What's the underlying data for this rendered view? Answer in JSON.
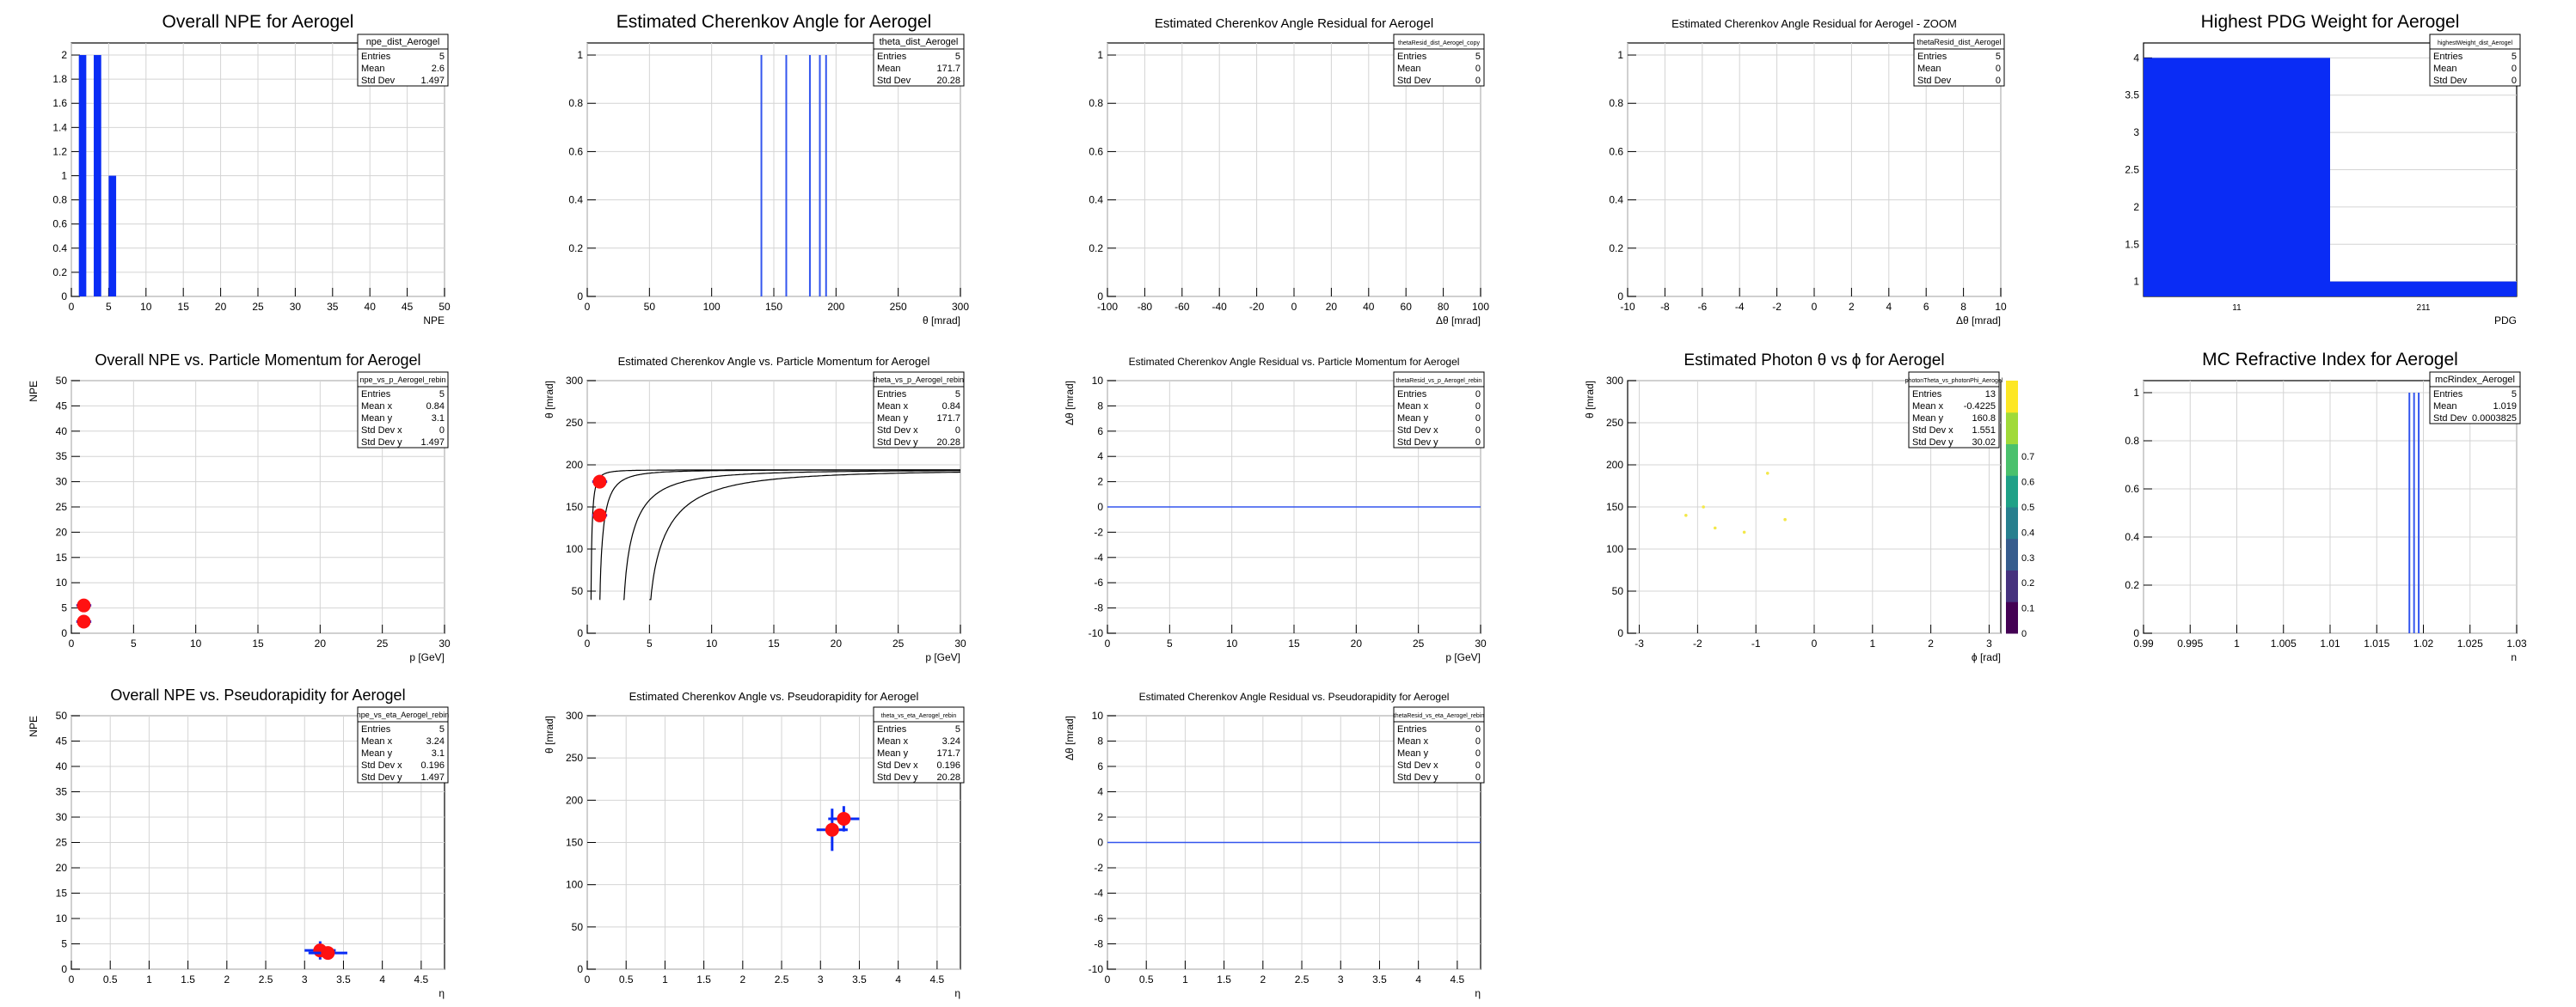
{
  "chart_data": [
    {
      "panel": 1,
      "type": "bar",
      "title": "Overall NPE for Aerogel",
      "xlabel": "NPE",
      "ylabel": "",
      "xlim": [
        0,
        50
      ],
      "ylim": [
        0,
        2.1
      ],
      "xticks": [
        0,
        5,
        10,
        15,
        20,
        25,
        30,
        35,
        40,
        45,
        50
      ],
      "yticks": [
        0,
        0.2,
        0.4,
        0.6,
        0.8,
        1,
        1.2,
        1.4,
        1.6,
        1.8,
        2
      ],
      "bins": [
        {
          "lo": 1,
          "hi": 2,
          "value": 2
        },
        {
          "lo": 3,
          "hi": 4,
          "value": 2
        },
        {
          "lo": 5,
          "hi": 6,
          "value": 1
        }
      ],
      "stats": {
        "name": "npe_dist_Aerogel",
        "rows": [
          [
            "Entries",
            "5"
          ],
          [
            "Mean",
            "2.6"
          ],
          [
            "Std Dev",
            "1.497"
          ]
        ]
      }
    },
    {
      "panel": 2,
      "type": "bar",
      "title": "Estimated Cherenkov Angle for Aerogel",
      "xlabel": "θ [mrad]",
      "ylabel": "",
      "xlim": [
        0,
        300
      ],
      "ylim": [
        0,
        1.05
      ],
      "xticks": [
        0,
        50,
        100,
        150,
        200,
        250,
        300
      ],
      "yticks": [
        0,
        0.2,
        0.4,
        0.6,
        0.8,
        1
      ],
      "lines": [
        140,
        160,
        179,
        187,
        192
      ],
      "stats": {
        "name": "theta_dist_Aerogel",
        "rows": [
          [
            "Entries",
            "5"
          ],
          [
            "Mean",
            "171.7"
          ],
          [
            "Std Dev",
            "20.28"
          ]
        ]
      }
    },
    {
      "panel": 3,
      "type": "bar",
      "title": "Estimated Cherenkov Angle Residual for Aerogel",
      "xlabel": "Δθ [mrad]",
      "ylabel": "",
      "xlim": [
        -100,
        100
      ],
      "ylim": [
        0,
        1.05
      ],
      "xticks": [
        -100,
        -80,
        -60,
        -40,
        -20,
        0,
        20,
        40,
        60,
        80,
        100
      ],
      "yticks": [
        0,
        0.2,
        0.4,
        0.6,
        0.8,
        1
      ],
      "stats": {
        "name": "thetaResid_dist_Aerogel_copy",
        "rows": [
          [
            "Entries",
            "5"
          ],
          [
            "Mean",
            "0"
          ],
          [
            "Std Dev",
            "0"
          ]
        ]
      }
    },
    {
      "panel": 4,
      "type": "bar",
      "title": "Estimated Cherenkov Angle Residual for Aerogel - ZOOM",
      "xlabel": "Δθ [mrad]",
      "ylabel": "",
      "xlim": [
        -10,
        10
      ],
      "ylim": [
        0,
        1.05
      ],
      "xticks": [
        -10,
        -8,
        -6,
        -4,
        -2,
        0,
        2,
        4,
        6,
        8,
        10
      ],
      "yticks": [
        0,
        0.2,
        0.4,
        0.6,
        0.8,
        1
      ],
      "stats": {
        "name": "thetaResid_dist_Aerogel",
        "rows": [
          [
            "Entries",
            "5"
          ],
          [
            "Mean",
            "0"
          ],
          [
            "Std Dev",
            "0"
          ]
        ]
      }
    },
    {
      "panel": 5,
      "type": "bar",
      "title": "Highest PDG Weight for Aerogel",
      "xlabel": "PDG",
      "ylabel": "",
      "ylim": [
        0.8,
        4.2
      ],
      "yticks": [
        1,
        1.5,
        2,
        2.5,
        3,
        3.5,
        4
      ],
      "categories": [
        "11",
        "211"
      ],
      "values": [
        4,
        1
      ],
      "stats": {
        "name": "highestWeight_dist_Aerogel",
        "rows": [
          [
            "Entries",
            "5"
          ],
          [
            "Mean",
            "0"
          ],
          [
            "Std Dev",
            "0"
          ]
        ]
      }
    },
    {
      "panel": 6,
      "type": "scatter",
      "title": "Overall NPE vs. Particle Momentum for Aerogel",
      "xlabel": "p [GeV]",
      "ylabel": "NPE",
      "xlim": [
        0,
        30
      ],
      "ylim": [
        0,
        50
      ],
      "xticks": [
        0,
        5,
        10,
        15,
        20,
        25,
        30
      ],
      "yticks": [
        0,
        5,
        10,
        15,
        20,
        25,
        30,
        35,
        40,
        45,
        50
      ],
      "points": [
        {
          "x": 1,
          "y": 5.5,
          "xerr": 0.6,
          "yerr": 1.2
        },
        {
          "x": 1,
          "y": 2.3,
          "xerr": 0.6,
          "yerr": 1.2
        }
      ],
      "stats": {
        "name": "npe_vs_p_Aerogel_rebin",
        "rows": [
          [
            "Entries",
            "5"
          ],
          [
            "Mean x",
            "0.84"
          ],
          [
            "Mean y",
            "3.1"
          ],
          [
            "Std Dev x",
            "0"
          ],
          [
            "Std Dev y",
            "1.497"
          ]
        ]
      }
    },
    {
      "panel": 7,
      "type": "scatter",
      "title": "Estimated Cherenkov Angle vs. Particle Momentum for Aerogel",
      "xlabel": "p [GeV]",
      "ylabel": "θ [mrad]",
      "xlim": [
        0,
        30
      ],
      "ylim": [
        0,
        300
      ],
      "xticks": [
        0,
        5,
        10,
        15,
        20,
        25,
        30
      ],
      "yticks": [
        0,
        50,
        100,
        150,
        200,
        250,
        300
      ],
      "curve_thresholds": [
        0.3,
        1.0,
        2.9,
        5.0
      ],
      "theta_max": 194,
      "points": [
        {
          "x": 1,
          "y": 180,
          "xerr": 0.6,
          "yerr": 8
        },
        {
          "x": 1,
          "y": 140,
          "xerr": 0.6,
          "yerr": 8
        }
      ],
      "stats": {
        "name": "theta_vs_p_Aerogel_rebin",
        "rows": [
          [
            "Entries",
            "5"
          ],
          [
            "Mean x",
            "0.84"
          ],
          [
            "Mean y",
            "171.7"
          ],
          [
            "Std Dev x",
            "0"
          ],
          [
            "Std Dev y",
            "20.28"
          ]
        ]
      }
    },
    {
      "panel": 8,
      "type": "scatter",
      "title": "Estimated Cherenkov Angle Residual vs. Particle Momentum for Aerogel",
      "xlabel": "p [GeV]",
      "ylabel": "Δθ [mrad]",
      "xlim": [
        0,
        30
      ],
      "ylim": [
        -10,
        10
      ],
      "xticks": [
        0,
        5,
        10,
        15,
        20,
        25,
        30
      ],
      "yticks": [
        -10,
        -8,
        -6,
        -4,
        -2,
        0,
        2,
        4,
        6,
        8,
        10
      ],
      "hline": 0,
      "stats": {
        "name": "thetaResid_vs_p_Aerogel_rebin",
        "rows": [
          [
            "Entries",
            "0"
          ],
          [
            "Mean x",
            "0"
          ],
          [
            "Mean y",
            "0"
          ],
          [
            "Std Dev x",
            "0"
          ],
          [
            "Std Dev y",
            "0"
          ]
        ]
      }
    },
    {
      "panel": 9,
      "type": "heatmap",
      "title": "Estimated Photon θ vs ϕ for Aerogel",
      "xlabel": "ϕ [rad]",
      "ylabel": "θ [mrad]",
      "xlim": [
        -3.2,
        3.2
      ],
      "ylim": [
        0,
        300
      ],
      "xticks": [
        -3,
        -2,
        -1,
        0,
        1,
        2,
        3
      ],
      "yticks": [
        0,
        50,
        100,
        150,
        200,
        250,
        300
      ],
      "zticks": [
        0,
        0.1,
        0.2,
        0.3,
        0.4,
        0.5,
        0.6,
        0.7
      ],
      "zlim": [
        0,
        1
      ],
      "points": [
        {
          "x": -2.2,
          "y": 140
        },
        {
          "x": -1.9,
          "y": 150
        },
        {
          "x": -1.7,
          "y": 125
        },
        {
          "x": -1.2,
          "y": 120
        },
        {
          "x": -0.8,
          "y": 190
        },
        {
          "x": -0.5,
          "y": 135
        }
      ],
      "stats": {
        "name": "photonTheta_vs_photonPhi_Aerogel",
        "rows": [
          [
            "Entries",
            "13"
          ],
          [
            "Mean x",
            "-0.4225"
          ],
          [
            "Mean y",
            "160.8"
          ],
          [
            "Std Dev x",
            "1.551"
          ],
          [
            "Std Dev y",
            "30.02"
          ]
        ]
      }
    },
    {
      "panel": 10,
      "type": "bar",
      "title": "MC Refractive Index for Aerogel",
      "xlabel": "n",
      "ylabel": "",
      "xlim": [
        0.99,
        1.03
      ],
      "ylim": [
        0,
        1.05
      ],
      "xticks": [
        0.99,
        0.995,
        1,
        1.005,
        1.01,
        1.015,
        1.02,
        1.025,
        1.03
      ],
      "yticks": [
        0,
        0.2,
        0.4,
        0.6,
        0.8,
        1
      ],
      "lines": [
        1.0185,
        1.019,
        1.0195
      ],
      "stats": {
        "name": "mcRindex_Aerogel",
        "rows": [
          [
            "Entries",
            "5"
          ],
          [
            "Mean",
            "1.019"
          ],
          [
            "Std Dev",
            "0.0003825"
          ]
        ]
      }
    },
    {
      "panel": 11,
      "type": "scatter",
      "title": "Overall NPE vs. Pseudorapidity for Aerogel",
      "xlabel": "η",
      "ylabel": "NPE",
      "xlim": [
        0,
        4.8
      ],
      "ylim": [
        0,
        50
      ],
      "xticks": [
        0,
        0.5,
        1,
        1.5,
        2,
        2.5,
        3,
        3.5,
        4,
        4.5
      ],
      "yticks": [
        0,
        5,
        10,
        15,
        20,
        25,
        30,
        35,
        40,
        45,
        50
      ],
      "points": [
        {
          "x": 3.2,
          "y": 3.7,
          "xerr": 0.2,
          "yerr": 1.8
        },
        {
          "x": 3.3,
          "y": 3.2,
          "xerr": 0.25,
          "yerr": 0.8
        }
      ],
      "stats": {
        "name": "npe_vs_eta_Aerogel_rebin",
        "rows": [
          [
            "Entries",
            "5"
          ],
          [
            "Mean x",
            "3.24"
          ],
          [
            "Mean y",
            "3.1"
          ],
          [
            "Std Dev x",
            "0.196"
          ],
          [
            "Std Dev y",
            "1.497"
          ]
        ]
      }
    },
    {
      "panel": 12,
      "type": "scatter",
      "title": "Estimated Cherenkov Angle vs. Pseudorapidity for Aerogel",
      "xlabel": "η",
      "ylabel": "θ [mrad]",
      "xlim": [
        0,
        4.8
      ],
      "ylim": [
        0,
        300
      ],
      "xticks": [
        0,
        0.5,
        1,
        1.5,
        2,
        2.5,
        3,
        3.5,
        4,
        4.5
      ],
      "yticks": [
        0,
        50,
        100,
        150,
        200,
        250,
        300
      ],
      "points": [
        {
          "x": 3.15,
          "y": 165,
          "xerr": 0.2,
          "yerr": 25
        },
        {
          "x": 3.3,
          "y": 178,
          "xerr": 0.2,
          "yerr": 15
        }
      ],
      "stats": {
        "name": "theta_vs_eta_Aerogel_rebin",
        "rows": [
          [
            "Entries",
            "5"
          ],
          [
            "Mean x",
            "3.24"
          ],
          [
            "Mean y",
            "171.7"
          ],
          [
            "Std Dev x",
            "0.196"
          ],
          [
            "Std Dev y",
            "20.28"
          ]
        ]
      }
    },
    {
      "panel": 13,
      "type": "scatter",
      "title": "Estimated Cherenkov Angle Residual vs. Pseudorapidity for Aerogel",
      "xlabel": "η",
      "ylabel": "Δθ [mrad]",
      "xlim": [
        0,
        4.8
      ],
      "ylim": [
        -10,
        10
      ],
      "xticks": [
        0,
        0.5,
        1,
        1.5,
        2,
        2.5,
        3,
        3.5,
        4,
        4.5
      ],
      "yticks": [
        -10,
        -8,
        -6,
        -4,
        -2,
        0,
        2,
        4,
        6,
        8,
        10
      ],
      "hline": 0,
      "stats": {
        "name": "thetaResid_vs_eta_Aerogel_rebin",
        "rows": [
          [
            "Entries",
            "0"
          ],
          [
            "Mean x",
            "0"
          ],
          [
            "Mean y",
            "0"
          ],
          [
            "Std Dev x",
            "0"
          ],
          [
            "Std Dev y",
            "0"
          ]
        ]
      }
    }
  ],
  "colors": {
    "hist": "#0a2cf5",
    "marker": "#ff1111",
    "line": "#3355ee",
    "grid": "#d4d4d4"
  }
}
